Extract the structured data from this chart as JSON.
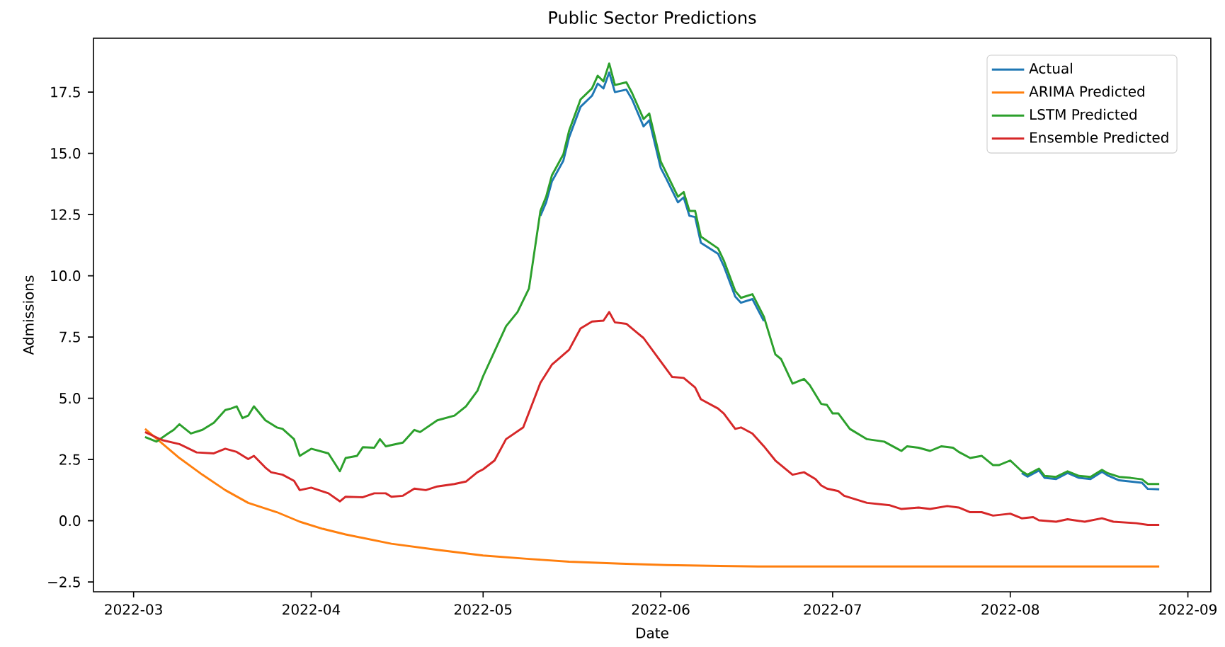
{
  "chart_data": {
    "type": "line",
    "title": "Public Sector Predictions",
    "xlabel": "Date",
    "ylabel": "Admissions",
    "xlim": [
      "2022-02-22",
      "2022-09-05"
    ],
    "ylim": [
      -2.9,
      19.7
    ],
    "xticks": [
      "2022-03",
      "2022-04",
      "2022-05",
      "2022-06",
      "2022-07",
      "2022-08",
      "2022-09"
    ],
    "yticks": [
      {
        "value": -2.5,
        "label": "−2.5"
      },
      {
        "value": 0,
        "label": "0.0"
      },
      {
        "value": 2.5,
        "label": "2.5"
      },
      {
        "value": 5,
        "label": "5.0"
      },
      {
        "value": 7.5,
        "label": "7.5"
      },
      {
        "value": 10,
        "label": "10.0"
      },
      {
        "value": 12.5,
        "label": "12.5"
      },
      {
        "value": 15,
        "label": "15.0"
      },
      {
        "value": 17.5,
        "label": "17.5"
      }
    ],
    "grid": false,
    "legend": "top right",
    "series": [
      {
        "name": "Actual",
        "color": "#1f77b4",
        "x": [
          "2022-05-11",
          "2022-05-12",
          "2022-05-13",
          "2022-05-15",
          "2022-05-16",
          "2022-05-18",
          "2022-05-20",
          "2022-05-21",
          "2022-05-22",
          "2022-05-23",
          "2022-05-24",
          "2022-05-26",
          "2022-05-27",
          "2022-05-29",
          "2022-05-30",
          "2022-06-01",
          "2022-06-02",
          "2022-06-04",
          "2022-06-05",
          "2022-06-06",
          "2022-06-07",
          "2022-06-08",
          "2022-06-11",
          "2022-06-12",
          "2022-06-14",
          "2022-06-15",
          "2022-06-17",
          "2022-06-19",
          "2022-07-10",
          "2022-08-03",
          "2022-08-04",
          "2022-08-06",
          "2022-08-07",
          "2022-08-09",
          "2022-08-11",
          "2022-08-13",
          "2022-08-15",
          "2022-08-17",
          "2022-08-18",
          "2022-08-20",
          "2022-08-22",
          "2022-08-24",
          "2022-08-25",
          "2022-08-27"
        ],
        "values": [
          12.45,
          13.0,
          13.85,
          14.7,
          15.65,
          16.9,
          17.35,
          17.85,
          17.65,
          18.3,
          17.5,
          17.6,
          17.2,
          16.1,
          16.35,
          14.4,
          13.95,
          13.0,
          13.2,
          12.45,
          12.4,
          11.35,
          10.9,
          10.4,
          9.15,
          8.9,
          9.05,
          8.15,
          null,
          1.95,
          1.8,
          2.05,
          1.75,
          1.7,
          1.95,
          1.75,
          1.7,
          2.0,
          1.85,
          1.65,
          1.6,
          1.55,
          1.3,
          1.28
        ]
      },
      {
        "name": "ARIMA Predicted",
        "color": "#ff7f0e",
        "x": [
          "2022-03-03",
          "2022-03-09",
          "2022-03-13",
          "2022-03-17",
          "2022-03-21",
          "2022-03-26",
          "2022-03-30",
          "2022-04-03",
          "2022-04-07",
          "2022-04-15",
          "2022-04-23",
          "2022-05-01",
          "2022-05-09",
          "2022-05-16",
          "2022-05-25",
          "2022-06-02",
          "2022-06-18",
          "2022-07-04",
          "2022-07-29",
          "2022-08-27"
        ],
        "values": [
          3.75,
          2.56,
          1.88,
          1.25,
          0.73,
          0.35,
          -0.04,
          -0.33,
          -0.56,
          -0.94,
          -1.19,
          -1.42,
          -1.56,
          -1.67,
          -1.75,
          -1.81,
          -1.87,
          -1.87,
          -1.87,
          -1.87
        ]
      },
      {
        "name": "LSTM Predicted",
        "color": "#2ca02c",
        "x": [
          "2022-03-03",
          "2022-03-05",
          "2022-03-07",
          "2022-03-08",
          "2022-03-09",
          "2022-03-11",
          "2022-03-13",
          "2022-03-15",
          "2022-03-17",
          "2022-03-18",
          "2022-03-19",
          "2022-03-20",
          "2022-03-21",
          "2022-03-22",
          "2022-03-24",
          "2022-03-26",
          "2022-03-27",
          "2022-03-29",
          "2022-03-30",
          "2022-04-01",
          "2022-04-04",
          "2022-04-06",
          "2022-04-07",
          "2022-04-09",
          "2022-04-10",
          "2022-04-12",
          "2022-04-13",
          "2022-04-14",
          "2022-04-17",
          "2022-04-19",
          "2022-04-20",
          "2022-04-23",
          "2022-04-26",
          "2022-04-28",
          "2022-04-30",
          "2022-05-01",
          "2022-05-05",
          "2022-05-07",
          "2022-05-09",
          "2022-05-11",
          "2022-05-12",
          "2022-05-13",
          "2022-05-15",
          "2022-05-16",
          "2022-05-18",
          "2022-05-20",
          "2022-05-21",
          "2022-05-22",
          "2022-05-23",
          "2022-05-24",
          "2022-05-26",
          "2022-05-27",
          "2022-05-29",
          "2022-05-30",
          "2022-06-01",
          "2022-06-02",
          "2022-06-04",
          "2022-06-05",
          "2022-06-06",
          "2022-06-07",
          "2022-06-08",
          "2022-06-11",
          "2022-06-12",
          "2022-06-14",
          "2022-06-15",
          "2022-06-17",
          "2022-06-19",
          "2022-06-21",
          "2022-06-22",
          "2022-06-24",
          "2022-06-26",
          "2022-06-27",
          "2022-06-29",
          "2022-06-30",
          "2022-07-01",
          "2022-07-02",
          "2022-07-04",
          "2022-07-07",
          "2022-07-10",
          "2022-07-13",
          "2022-07-14",
          "2022-07-16",
          "2022-07-18",
          "2022-07-20",
          "2022-07-22",
          "2022-07-23",
          "2022-07-25",
          "2022-07-27",
          "2022-07-29",
          "2022-07-30",
          "2022-08-01",
          "2022-08-03",
          "2022-08-04",
          "2022-08-06",
          "2022-08-07",
          "2022-08-09",
          "2022-08-11",
          "2022-08-13",
          "2022-08-15",
          "2022-08-17",
          "2022-08-18",
          "2022-08-20",
          "2022-08-22",
          "2022-08-24",
          "2022-08-25",
          "2022-08-27"
        ],
        "values": [
          3.42,
          3.23,
          3.56,
          3.71,
          3.94,
          3.56,
          3.71,
          4.0,
          4.52,
          4.58,
          4.67,
          4.19,
          4.29,
          4.67,
          4.1,
          3.81,
          3.75,
          3.33,
          2.65,
          2.94,
          2.75,
          2.02,
          2.56,
          2.65,
          3.0,
          2.98,
          3.33,
          3.04,
          3.19,
          3.71,
          3.62,
          4.1,
          4.29,
          4.67,
          5.3,
          5.9,
          7.94,
          8.52,
          9.48,
          12.65,
          13.23,
          14.1,
          14.96,
          15.92,
          17.2,
          17.65,
          18.17,
          17.94,
          18.67,
          17.79,
          17.9,
          17.46,
          16.4,
          16.63,
          14.67,
          14.19,
          13.23,
          13.42,
          12.65,
          12.65,
          11.6,
          11.12,
          10.63,
          9.38,
          9.1,
          9.25,
          8.33,
          6.79,
          6.6,
          5.6,
          5.79,
          5.54,
          4.77,
          4.73,
          4.38,
          4.38,
          3.75,
          3.33,
          3.23,
          2.85,
          3.04,
          2.98,
          2.85,
          3.04,
          2.98,
          2.81,
          2.56,
          2.65,
          2.27,
          2.27,
          2.46,
          2.02,
          1.88,
          2.13,
          1.83,
          1.79,
          2.02,
          1.83,
          1.79,
          2.08,
          1.94,
          1.79,
          1.75,
          1.69,
          1.5,
          1.5
        ]
      },
      {
        "name": "Ensemble Predicted",
        "color": "#d62728",
        "x": [
          "2022-03-03",
          "2022-03-06",
          "2022-03-09",
          "2022-03-12",
          "2022-03-15",
          "2022-03-17",
          "2022-03-19",
          "2022-03-21",
          "2022-03-22",
          "2022-03-24",
          "2022-03-25",
          "2022-03-27",
          "2022-03-29",
          "2022-03-30",
          "2022-04-01",
          "2022-04-04",
          "2022-04-06",
          "2022-04-07",
          "2022-04-10",
          "2022-04-12",
          "2022-04-14",
          "2022-04-15",
          "2022-04-17",
          "2022-04-19",
          "2022-04-21",
          "2022-04-23",
          "2022-04-26",
          "2022-04-28",
          "2022-04-30",
          "2022-05-01",
          "2022-05-03",
          "2022-05-05",
          "2022-05-08",
          "2022-05-11",
          "2022-05-13",
          "2022-05-16",
          "2022-05-18",
          "2022-05-20",
          "2022-05-22",
          "2022-05-23",
          "2022-05-24",
          "2022-05-26",
          "2022-05-28",
          "2022-05-29",
          "2022-06-01",
          "2022-06-03",
          "2022-06-05",
          "2022-06-07",
          "2022-06-08",
          "2022-06-11",
          "2022-06-12",
          "2022-06-14",
          "2022-06-15",
          "2022-06-17",
          "2022-06-19",
          "2022-06-21",
          "2022-06-24",
          "2022-06-26",
          "2022-06-28",
          "2022-06-29",
          "2022-06-30",
          "2022-07-02",
          "2022-07-03",
          "2022-07-07",
          "2022-07-11",
          "2022-07-13",
          "2022-07-16",
          "2022-07-18",
          "2022-07-21",
          "2022-07-23",
          "2022-07-25",
          "2022-07-27",
          "2022-07-29",
          "2022-08-01",
          "2022-08-03",
          "2022-08-05",
          "2022-08-06",
          "2022-08-09",
          "2022-08-11",
          "2022-08-14",
          "2022-08-17",
          "2022-08-19",
          "2022-08-23",
          "2022-08-25",
          "2022-08-27"
        ],
        "values": [
          3.62,
          3.29,
          3.13,
          2.79,
          2.75,
          2.94,
          2.81,
          2.52,
          2.65,
          2.17,
          1.98,
          1.88,
          1.63,
          1.25,
          1.35,
          1.12,
          0.79,
          0.98,
          0.96,
          1.12,
          1.12,
          0.98,
          1.02,
          1.31,
          1.25,
          1.4,
          1.5,
          1.6,
          1.98,
          2.1,
          2.46,
          3.33,
          3.81,
          5.63,
          6.37,
          6.98,
          7.85,
          8.13,
          8.17,
          8.52,
          8.1,
          8.04,
          7.65,
          7.46,
          6.5,
          5.87,
          5.83,
          5.44,
          4.96,
          4.58,
          4.38,
          3.75,
          3.81,
          3.56,
          3.04,
          2.46,
          1.88,
          1.98,
          1.7,
          1.44,
          1.31,
          1.21,
          1.02,
          0.73,
          0.63,
          0.48,
          0.54,
          0.48,
          0.6,
          0.54,
          0.35,
          0.35,
          0.21,
          0.29,
          0.1,
          0.15,
          0.02,
          -0.04,
          0.06,
          -0.04,
          0.1,
          -0.04,
          -0.1,
          -0.17,
          -0.17
        ]
      }
    ]
  }
}
